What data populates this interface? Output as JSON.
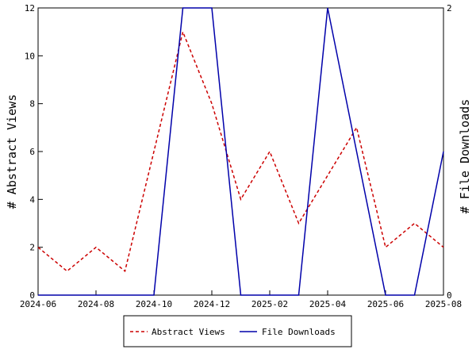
{
  "chart_data": {
    "type": "line",
    "x": [
      "2024-06",
      "2024-07",
      "2024-08",
      "2024-09",
      "2024-10",
      "2024-11",
      "2024-12",
      "2025-01",
      "2025-02",
      "2025-03",
      "2025-04",
      "2025-05",
      "2025-06",
      "2025-07",
      "2025-08"
    ],
    "x_ticks": [
      "2024-06",
      "2024-08",
      "2024-10",
      "2024-12",
      "2025-02",
      "2025-04",
      "2025-06",
      "2025-08"
    ],
    "y_left_ticks": [
      "0",
      "2",
      "4",
      "6",
      "8",
      "10",
      "12"
    ],
    "y_right_ticks": [
      "0",
      "2"
    ],
    "ylim_left": [
      0,
      12
    ],
    "ylim_right": [
      0,
      2
    ],
    "ylabel_left": "# Abstract Views",
    "ylabel_right": "# File Downloads",
    "grid": false,
    "legend_position": "bottom",
    "series": [
      {
        "name": "Abstract Views",
        "axis": "left",
        "style": "dashed",
        "color": "#cc0000",
        "values": [
          2,
          1,
          2,
          1,
          6,
          11,
          8,
          4,
          6,
          3,
          5,
          7,
          2,
          3,
          2
        ]
      },
      {
        "name": "File Downloads",
        "axis": "right",
        "style": "solid",
        "color": "#0000aa",
        "values": [
          0,
          0,
          0,
          0,
          0,
          2,
          2,
          0,
          0,
          0,
          2,
          1,
          0,
          0,
          1
        ]
      }
    ]
  }
}
